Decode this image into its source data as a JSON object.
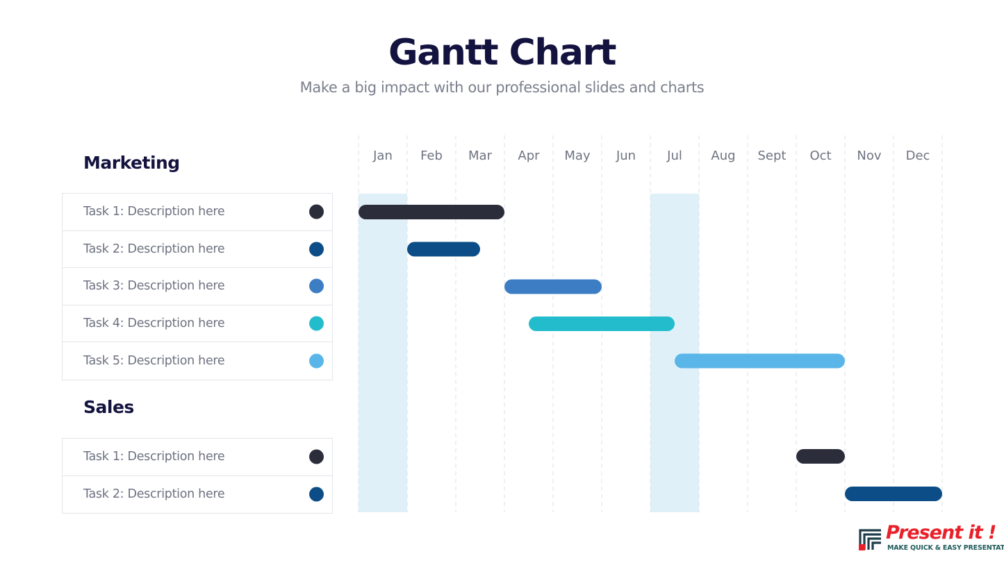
{
  "header": {
    "title": "Gantt Chart",
    "subtitle": "Make a big impact with our professional slides and charts"
  },
  "groups": [
    {
      "name": "Marketing",
      "tasks": [
        {
          "label": "Task 1: Description here",
          "color": "#2b2d3a"
        },
        {
          "label": "Task 2: Description here",
          "color": "#0c4d87"
        },
        {
          "label": "Task 3: Description here",
          "color": "#3d7dc4"
        },
        {
          "label": "Task 4: Description here",
          "color": "#22bccc"
        },
        {
          "label": "Task 5: Description here",
          "color": "#5ab6e8"
        }
      ]
    },
    {
      "name": "Sales",
      "tasks": [
        {
          "label": "Task 1: Description here",
          "color": "#2b2d3a"
        },
        {
          "label": "Task 2: Description here",
          "color": "#0c4d87"
        }
      ]
    }
  ],
  "chart_data": {
    "type": "gantt",
    "months": [
      "Jan",
      "Feb",
      "Mar",
      "Apr",
      "May",
      "Jun",
      "Jul",
      "Aug",
      "Sept",
      "Oct",
      "Nov",
      "Dec"
    ],
    "highlighted_months": [
      "Jan",
      "Jul"
    ],
    "highlight_color": "#dff0f8",
    "grid": "dashed vertical",
    "tasks": [
      {
        "group": "Marketing",
        "task": "Task 1: Description here",
        "start_month": 0,
        "end_month": 3,
        "color": "#2b2d3a"
      },
      {
        "group": "Marketing",
        "task": "Task 2: Description here",
        "start_month": 1,
        "end_month": 2.5,
        "color": "#0c4d87"
      },
      {
        "group": "Marketing",
        "task": "Task 3: Description here",
        "start_month": 3,
        "end_month": 5,
        "color": "#3d7dc4"
      },
      {
        "group": "Marketing",
        "task": "Task 4: Description here",
        "start_month": 3.5,
        "end_month": 6.5,
        "color": "#22bccc"
      },
      {
        "group": "Marketing",
        "task": "Task 5: Description here",
        "start_month": 6.5,
        "end_month": 10,
        "color": "#5ab6e8"
      },
      {
        "group": "Sales",
        "task": "Task 1: Description here",
        "start_month": 9,
        "end_month": 10,
        "color": "#2b2d3a"
      },
      {
        "group": "Sales",
        "task": "Task 2: Description here",
        "start_month": 10,
        "end_month": 12,
        "color": "#0c4d87"
      }
    ]
  },
  "logo": {
    "name": "Present it !",
    "tagline": "MAKE QUICK & EASY PRESENTATIONS"
  }
}
